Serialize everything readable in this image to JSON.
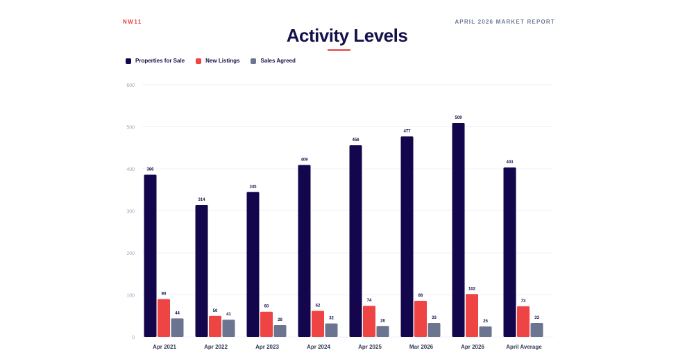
{
  "header": {
    "area_code": "NW11",
    "report_label": "APRIL 2026 MARKET REPORT",
    "title": "Activity Levels"
  },
  "colors": {
    "accent": "#e63e3e",
    "title": "#14104a",
    "properties": "#14064d",
    "new_listings": "#ef4444",
    "sales_agreed": "#6b7590"
  },
  "chart_data": {
    "type": "bar",
    "title": "Activity Levels",
    "xlabel": "",
    "ylabel": "",
    "ylim": [
      0,
      600
    ],
    "yticks": [
      0,
      100,
      200,
      300,
      400,
      500,
      600
    ],
    "grid": true,
    "legend_position": "top-left",
    "categories": [
      "Apr 2021",
      "Apr 2022",
      "Apr 2023",
      "Apr 2024",
      "Apr 2025",
      "Mar 2026",
      "Apr 2026",
      "April Average"
    ],
    "series": [
      {
        "name": "Properties for Sale",
        "color": "#14064d",
        "values": [
          386,
          314,
          345,
          409,
          456,
          477,
          509,
          403
        ]
      },
      {
        "name": "New Listings",
        "color": "#ef4444",
        "values": [
          90,
          50,
          60,
          62,
          74,
          86,
          102,
          73
        ]
      },
      {
        "name": "Sales Agreed",
        "color": "#6b7590",
        "values": [
          44,
          41,
          28,
          32,
          26,
          33,
          25,
          33
        ]
      }
    ]
  }
}
